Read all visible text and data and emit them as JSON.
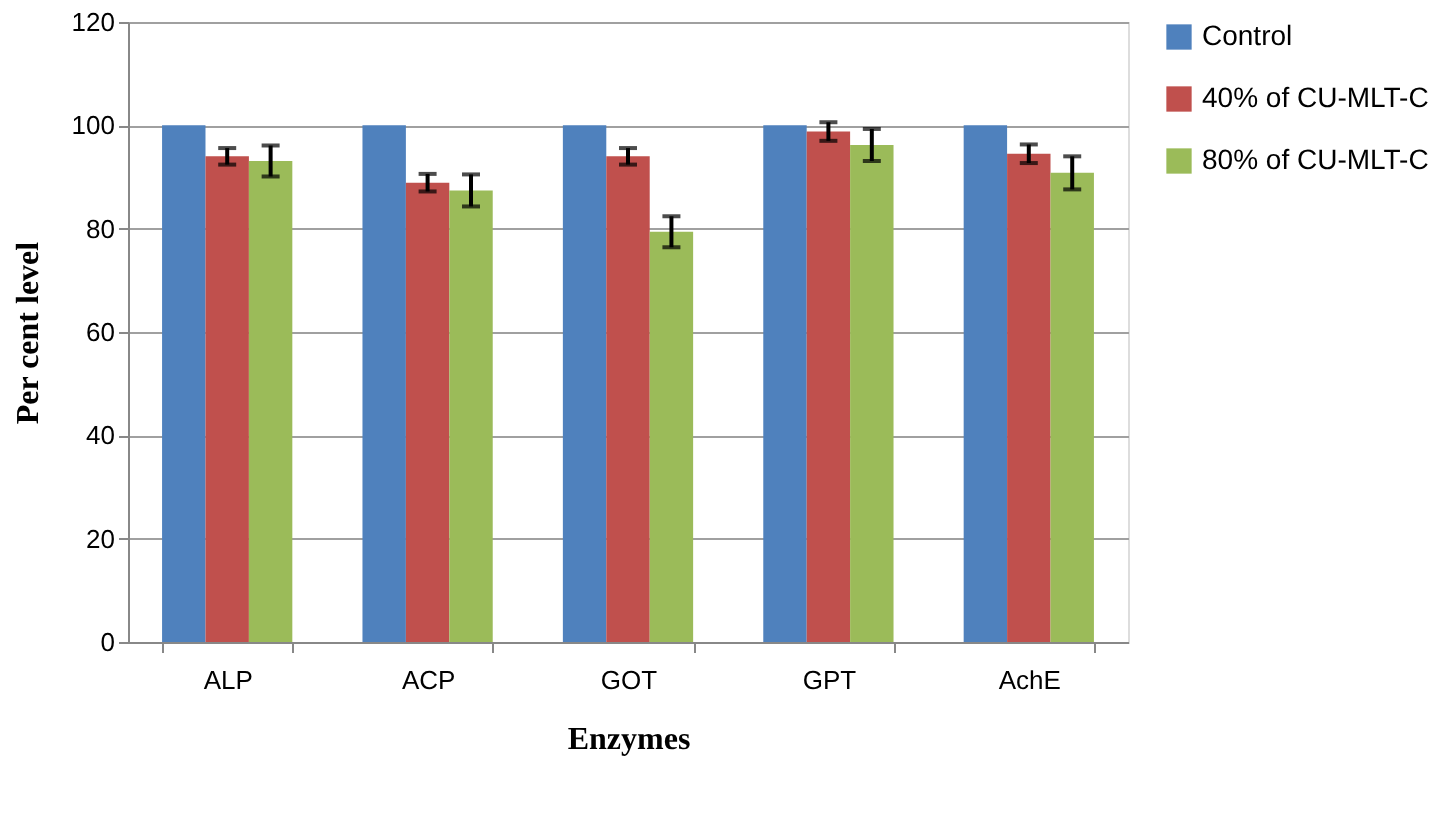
{
  "chart_data": {
    "type": "bar",
    "xlabel": "Enzymes",
    "ylabel": "Per cent level",
    "categories": [
      "ALP",
      "ACP",
      "GOT",
      "GPT",
      "AchE"
    ],
    "series": [
      {
        "name": "Control",
        "color": "#4f81bd",
        "values": [
          100,
          100,
          100,
          100,
          100
        ]
      },
      {
        "name": "40% of CU-MLT-C",
        "color": "#c0504d",
        "values": [
          94.0,
          88.9,
          94.0,
          98.8,
          94.5
        ],
        "errors": [
          1.6,
          1.7,
          1.6,
          1.8,
          1.8
        ]
      },
      {
        "name": "80% of CU-MLT-C",
        "color": "#9bbb59",
        "values": [
          93.1,
          87.4,
          79.4,
          96.2,
          90.8
        ],
        "errors": [
          3.0,
          3.1,
          3.0,
          3.1,
          3.2
        ]
      }
    ],
    "ylim": [
      0,
      120
    ],
    "yticks": [
      0,
      20,
      40,
      60,
      80,
      100,
      120
    ],
    "grid": "y",
    "legend": "right"
  }
}
